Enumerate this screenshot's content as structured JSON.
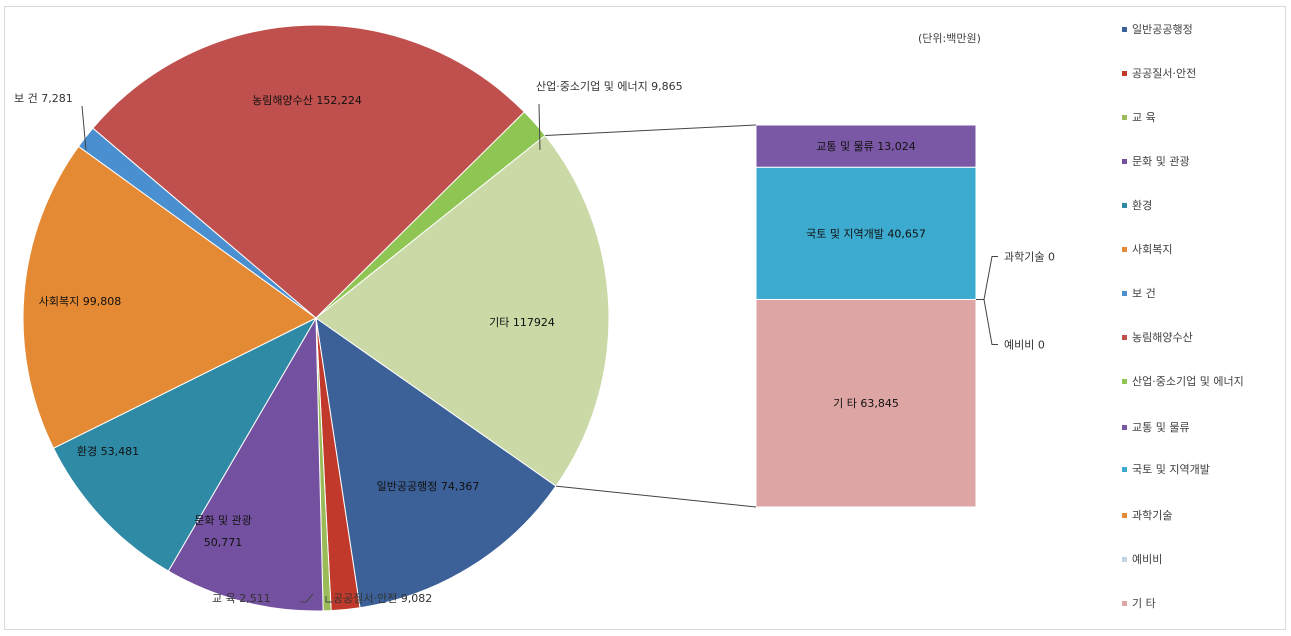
{
  "chart_data": {
    "type": "pie",
    "unit_label": "(단위:백만원)",
    "slices": [
      {
        "label": "일반공공행정",
        "value": 74367,
        "value_text": "74,367",
        "color": "#3c6098"
      },
      {
        "label": "공공질서·안전",
        "value": 9082,
        "value_text": "9,082",
        "color": "#c0392b"
      },
      {
        "label": "교 육",
        "value": 2511,
        "value_text": "2,511",
        "color": "#9bbb59"
      },
      {
        "label": "문화 및 관광",
        "value": 50771,
        "value_text": "50,771",
        "color": "#7451a0"
      },
      {
        "label": "환경",
        "value": 53481,
        "value_text": "53,481",
        "color": "#2f8aa6"
      },
      {
        "label": "사회복지",
        "value": 99808,
        "value_text": "99,808",
        "color": "#e58a34"
      },
      {
        "label": "보 건",
        "value": 7281,
        "value_text": "7,281",
        "color": "#4a8fcf"
      },
      {
        "label": "농림해양수산",
        "value": 152224,
        "value_text": "152,224",
        "color": "#c0504d"
      },
      {
        "label": "산업·중소기업 및 에너지",
        "value": 9865,
        "value_text": "9,865",
        "color": "#8fc653"
      },
      {
        "label": "기타",
        "value": 117924,
        "value_text": "117924",
        "color": "#cbd9a6"
      }
    ],
    "breakdown": {
      "items": [
        {
          "label": "교통 및 물류",
          "value": 13024,
          "value_text": "13,024",
          "color": "#7b58a6"
        },
        {
          "label": "국토 및 지역개발",
          "value": 40657,
          "value_text": "40,657",
          "color": "#3cabcf"
        },
        {
          "label": "과학기술",
          "value": 0,
          "value_text": "0",
          "color": "#e58a34"
        },
        {
          "label": "예비비",
          "value": 0,
          "value_text": "0",
          "color": "#c3d3e0"
        },
        {
          "label": "기 타",
          "value": 63845,
          "value_text": "63,845",
          "color": "#dda6a4"
        }
      ]
    },
    "legend": [
      {
        "label": "일반공공행정",
        "color": "#3c6098"
      },
      {
        "label": "공공질서·안전",
        "color": "#c0392b"
      },
      {
        "label": "교 육",
        "color": "#9bbb59"
      },
      {
        "label": "문화 및 관광",
        "color": "#7451a0"
      },
      {
        "label": "환경",
        "color": "#2f8aa6"
      },
      {
        "label": "사회복지",
        "color": "#e58a34"
      },
      {
        "label": "보 건",
        "color": "#4a8fcf"
      },
      {
        "label": "농림해양수산",
        "color": "#c0504d"
      },
      {
        "label": "산업·중소기업 및 에너지",
        "color": "#8fc653"
      },
      {
        "label": "교통 및 물류",
        "color": "#7b58a6"
      },
      {
        "label": "국토 및 지역개발",
        "color": "#3cabcf"
      },
      {
        "label": "과학기술",
        "color": "#e58a34"
      },
      {
        "label": "예비비",
        "color": "#c3d3e0"
      },
      {
        "label": "기 타",
        "color": "#dda6a4"
      }
    ]
  }
}
